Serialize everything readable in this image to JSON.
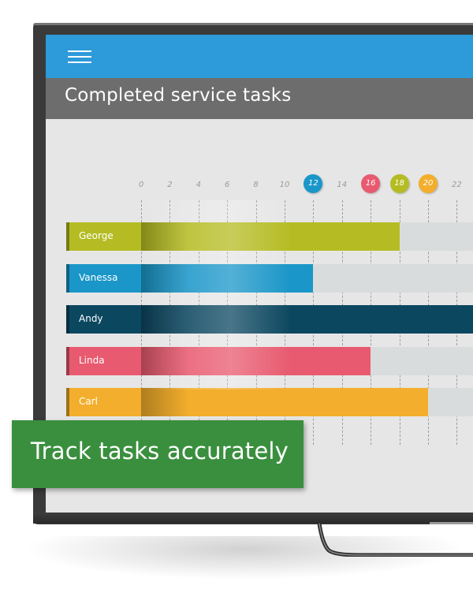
{
  "header": {
    "menu_icon": "hamburger-menu-icon",
    "title": "Completed service tasks"
  },
  "chart_data": {
    "type": "bar",
    "orientation": "horizontal",
    "title": "Completed service tasks",
    "x_ticks": [
      "0",
      "2",
      "4",
      "6",
      "8",
      "10",
      "12",
      "14",
      "16",
      "18",
      "20",
      "22"
    ],
    "xlim": [
      0,
      24
    ],
    "grid": true,
    "categories": [
      "George",
      "Vanessa",
      "Andy",
      "Linda",
      "Carl"
    ],
    "values": [
      18,
      12,
      24,
      16,
      20
    ],
    "colors": [
      "#b5bc23",
      "#1a96c8",
      "#0c4760",
      "#e85a6f",
      "#f2ae2c"
    ],
    "highlighted_ticks": [
      {
        "label": "12",
        "color": "#1a96c8"
      },
      {
        "label": "16",
        "color": "#e85a6f"
      },
      {
        "label": "18",
        "color": "#b5bc23"
      },
      {
        "label": "20",
        "color": "#f2ae2c"
      }
    ]
  },
  "banner": {
    "text": "Track tasks accurately",
    "color": "#3a8f3e"
  },
  "colors": {
    "app_bar": "#2d9ad9",
    "title_bar": "#6d6d6d",
    "screen_bg": "#e6e6e6",
    "track": "#d9dcdc"
  }
}
